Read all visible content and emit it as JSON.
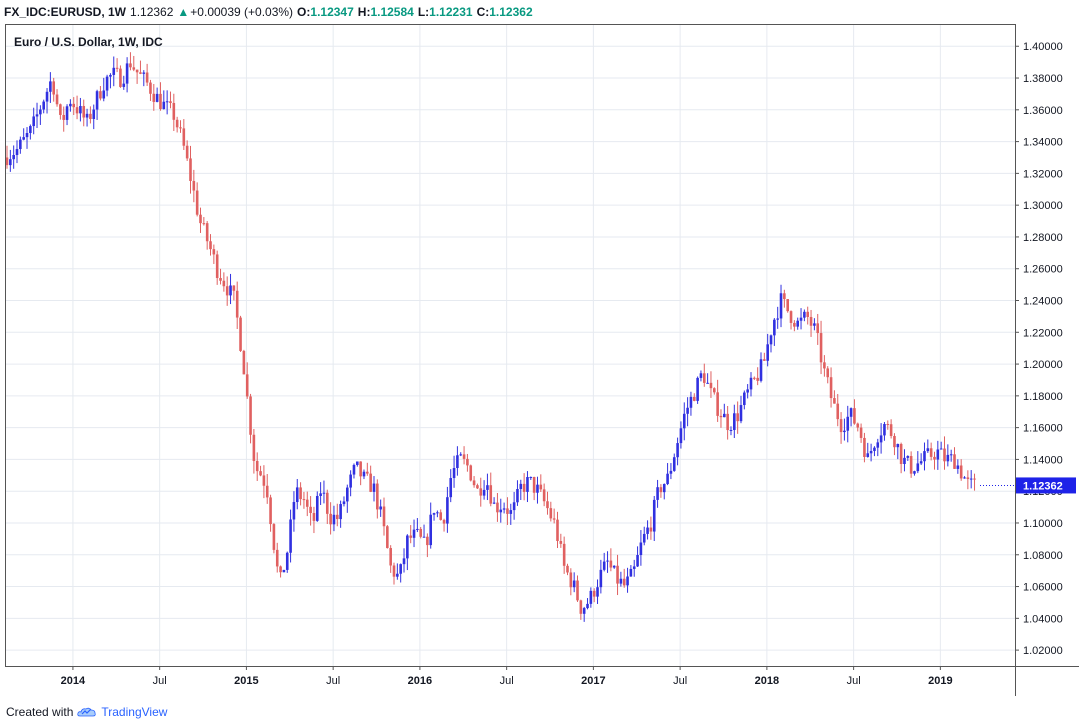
{
  "header": {
    "symbol": "FX_IDC:EURUSD, 1W",
    "last": "1.12362",
    "change_arrow": "▲",
    "change": "+0.00039 (+0.03%)",
    "open_label": "O:",
    "open": "1.12347",
    "high_label": "H:",
    "high": "1.12584",
    "low_label": "L:",
    "low": "1.12231",
    "close_label": "C:",
    "close": "1.12362"
  },
  "footer": {
    "created_with": "Created with",
    "brand": "TradingView",
    "logo_icon": "tradingview-cloud-icon"
  },
  "colors": {
    "up": "#3030e0",
    "down": "#e06060",
    "grid": "#e6eaf0",
    "axis": "#555555",
    "last_price_bg": "#1e22e8",
    "up_text": "#089981"
  },
  "chart_data": {
    "type": "candlestick",
    "title": "Euro / U.S. Dollar, 1W, IDC",
    "xlabel": "",
    "ylabel": "",
    "ylim": [
      1.01,
      1.414
    ],
    "x_start": 2013.62,
    "x_end": 2019.24,
    "y_ticks": [
      "1.40000",
      "1.38000",
      "1.36000",
      "1.34000",
      "1.32000",
      "1.30000",
      "1.28000",
      "1.26000",
      "1.24000",
      "1.22000",
      "1.20000",
      "1.18000",
      "1.16000",
      "1.14000",
      "1.12000",
      "1.10000",
      "1.08000",
      "1.06000",
      "1.04000",
      "1.02000"
    ],
    "x_ticks": [
      {
        "label": "2014",
        "t": 2014.0
      },
      {
        "label": "Jul",
        "t": 2014.5
      },
      {
        "label": "2015",
        "t": 2015.0
      },
      {
        "label": "Jul",
        "t": 2015.5
      },
      {
        "label": "2016",
        "t": 2016.0
      },
      {
        "label": "Jul",
        "t": 2016.5
      },
      {
        "label": "2017",
        "t": 2017.0
      },
      {
        "label": "Jul",
        "t": 2017.5
      },
      {
        "label": "2018",
        "t": 2018.0
      },
      {
        "label": "Jul",
        "t": 2018.5
      },
      {
        "label": "2019",
        "t": 2019.0
      }
    ],
    "last_price": "1.12362",
    "close_path": [
      [
        2013.62,
        1.33
      ],
      [
        2013.7,
        1.335
      ],
      [
        2013.78,
        1.347
      ],
      [
        2013.85,
        1.367
      ],
      [
        2013.9,
        1.38
      ],
      [
        2013.95,
        1.35
      ],
      [
        2014.0,
        1.367
      ],
      [
        2014.05,
        1.36
      ],
      [
        2014.1,
        1.352
      ],
      [
        2014.15,
        1.365
      ],
      [
        2014.2,
        1.378
      ],
      [
        2014.25,
        1.382
      ],
      [
        2014.3,
        1.38
      ],
      [
        2014.35,
        1.39
      ],
      [
        2014.4,
        1.382
      ],
      [
        2014.45,
        1.376
      ],
      [
        2014.5,
        1.368
      ],
      [
        2014.55,
        1.362
      ],
      [
        2014.6,
        1.357
      ],
      [
        2014.65,
        1.34
      ],
      [
        2014.7,
        1.316
      ],
      [
        2014.75,
        1.29
      ],
      [
        2014.8,
        1.276
      ],
      [
        2014.85,
        1.26
      ],
      [
        2014.9,
        1.25
      ],
      [
        2014.95,
        1.24
      ],
      [
        2015.0,
        1.203
      ],
      [
        2015.03,
        1.172
      ],
      [
        2015.07,
        1.135
      ],
      [
        2015.11,
        1.13
      ],
      [
        2015.14,
        1.12
      ],
      [
        2015.18,
        1.085
      ],
      [
        2015.21,
        1.06
      ],
      [
        2015.26,
        1.085
      ],
      [
        2015.3,
        1.12
      ],
      [
        2015.35,
        1.115
      ],
      [
        2015.4,
        1.098
      ],
      [
        2015.45,
        1.122
      ],
      [
        2015.5,
        1.104
      ],
      [
        2015.55,
        1.103
      ],
      [
        2015.6,
        1.121
      ],
      [
        2015.65,
        1.135
      ],
      [
        2015.7,
        1.127
      ],
      [
        2015.75,
        1.123
      ],
      [
        2015.8,
        1.102
      ],
      [
        2015.85,
        1.072
      ],
      [
        2015.9,
        1.065
      ],
      [
        2015.95,
        1.09
      ],
      [
        2016.0,
        1.092
      ],
      [
        2016.05,
        1.085
      ],
      [
        2016.1,
        1.11
      ],
      [
        2016.15,
        1.1
      ],
      [
        2016.2,
        1.13
      ],
      [
        2016.25,
        1.14
      ],
      [
        2016.3,
        1.135
      ],
      [
        2016.35,
        1.12
      ],
      [
        2016.4,
        1.128
      ],
      [
        2016.45,
        1.11
      ],
      [
        2016.5,
        1.112
      ],
      [
        2016.55,
        1.105
      ],
      [
        2016.6,
        1.122
      ],
      [
        2016.65,
        1.126
      ],
      [
        2016.7,
        1.12
      ],
      [
        2016.75,
        1.11
      ],
      [
        2016.8,
        1.098
      ],
      [
        2016.85,
        1.072
      ],
      [
        2016.9,
        1.062
      ],
      [
        2016.95,
        1.046
      ],
      [
        2017.0,
        1.052
      ],
      [
        2017.05,
        1.065
      ],
      [
        2017.1,
        1.075
      ],
      [
        2017.15,
        1.065
      ],
      [
        2017.2,
        1.06
      ],
      [
        2017.25,
        1.068
      ],
      [
        2017.3,
        1.088
      ],
      [
        2017.35,
        1.1
      ],
      [
        2017.4,
        1.122
      ],
      [
        2017.45,
        1.128
      ],
      [
        2017.5,
        1.15
      ],
      [
        2017.55,
        1.17
      ],
      [
        2017.6,
        1.182
      ],
      [
        2017.65,
        1.195
      ],
      [
        2017.7,
        1.18
      ],
      [
        2017.75,
        1.17
      ],
      [
        2017.8,
        1.162
      ],
      [
        2017.85,
        1.168
      ],
      [
        2017.9,
        1.18
      ],
      [
        2017.95,
        1.19
      ],
      [
        2018.0,
        1.2
      ],
      [
        2018.05,
        1.225
      ],
      [
        2018.1,
        1.24
      ],
      [
        2018.15,
        1.232
      ],
      [
        2018.2,
        1.225
      ],
      [
        2018.25,
        1.23
      ],
      [
        2018.3,
        1.22
      ],
      [
        2018.35,
        1.195
      ],
      [
        2018.4,
        1.175
      ],
      [
        2018.45,
        1.162
      ],
      [
        2018.5,
        1.168
      ],
      [
        2018.55,
        1.16
      ],
      [
        2018.6,
        1.14
      ],
      [
        2018.65,
        1.155
      ],
      [
        2018.7,
        1.162
      ],
      [
        2018.75,
        1.155
      ],
      [
        2018.8,
        1.14
      ],
      [
        2018.85,
        1.135
      ],
      [
        2018.9,
        1.138
      ],
      [
        2018.95,
        1.142
      ],
      [
        2019.0,
        1.145
      ],
      [
        2019.05,
        1.14
      ],
      [
        2019.1,
        1.14
      ],
      [
        2019.15,
        1.13
      ],
      [
        2019.18,
        1.124
      ],
      [
        2019.2,
        1.1236
      ]
    ]
  }
}
